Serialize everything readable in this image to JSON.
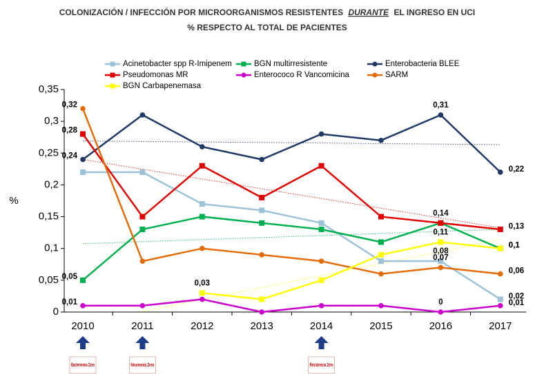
{
  "chart_data": {
    "type": "line",
    "title": [
      "COLONIZACIÓN / INFECCIÓN POR MICROORGANISMOS RESISTENTES",
      "DURANTE",
      "EL INGRESO EN UCI"
    ],
    "subtitle": "% RESPECTO AL TOTAL DE  PACIENTES",
    "y_label": "%",
    "categories": [
      "2010",
      "2011",
      "2012",
      "2013",
      "2014",
      "2015",
      "2016",
      "2017"
    ],
    "ylim": [
      0,
      0.35
    ],
    "yticks": [
      0,
      {
        "value": 0.05,
        "label": "0,05"
      },
      {
        "value": 0.1,
        "label": "0,1"
      },
      {
        "value": 0.15,
        "label": "0,15"
      },
      {
        "value": 0.2,
        "label": "0,2"
      },
      {
        "value": 0.25,
        "label": "0,25"
      },
      {
        "value": 0.3,
        "label": "0,3"
      },
      {
        "value": 0.35,
        "label": "0,35"
      }
    ],
    "grid": false,
    "series": [
      {
        "name": "Acinetobacter spp R-Imipenem",
        "color": "#9dc3d8",
        "marker": "square",
        "trendline": false,
        "values": [
          0.22,
          0.22,
          0.17,
          0.16,
          0.14,
          0.08,
          0.08,
          0.02
        ],
        "value_labels": [
          null,
          null,
          null,
          null,
          null,
          null,
          "0,08",
          "0,02"
        ]
      },
      {
        "name": "BGN multirresistente",
        "color": "#00b050",
        "marker": "square",
        "trendline": true,
        "values": [
          0.05,
          0.13,
          0.15,
          0.14,
          0.13,
          0.11,
          0.14,
          0.1
        ],
        "value_labels": [
          "0,05",
          null,
          null,
          null,
          null,
          null,
          null,
          "0,1"
        ]
      },
      {
        "name": "Enterobacteria BLEE",
        "color": "#1f3864",
        "marker": "circle",
        "trendline": true,
        "values": [
          0.24,
          0.31,
          0.26,
          0.24,
          0.28,
          0.27,
          0.31,
          0.22
        ],
        "value_labels": [
          "0,24",
          null,
          null,
          null,
          null,
          null,
          "0,31",
          "0,22"
        ]
      },
      {
        "name": "Pseudomonas MR",
        "color": "#e00000",
        "marker": "square",
        "trendline": true,
        "values": [
          0.28,
          0.15,
          0.23,
          0.18,
          0.23,
          0.15,
          0.14,
          0.13
        ],
        "value_labels": [
          "0,28",
          null,
          null,
          null,
          null,
          null,
          "0,14",
          "0,13"
        ]
      },
      {
        "name": "Enterococo R Vancomicina",
        "color": "#cc00cc",
        "marker": "circle",
        "trendline": false,
        "values": [
          0.01,
          0.01,
          0.02,
          0,
          0.01,
          0.01,
          0,
          0.01
        ],
        "value_labels": [
          "0,01",
          null,
          null,
          null,
          null,
          null,
          "0",
          "0,01"
        ]
      },
      {
        "name": "SARM",
        "color": "#e36c09",
        "marker": "circle",
        "trendline": false,
        "values": [
          0.32,
          0.08,
          0.1,
          0.09,
          0.08,
          0.06,
          0.07,
          0.06
        ],
        "value_labels": [
          "0,32",
          null,
          null,
          null,
          null,
          null,
          "0,07",
          "0,06"
        ]
      },
      {
        "name": "BGN Carbapenemasa",
        "color": "#ffff00",
        "marker": "square",
        "trendline": true,
        "values": [
          null,
          null,
          0.03,
          0.02,
          0.05,
          0.09,
          0.11,
          0.1
        ],
        "value_labels": [
          null,
          null,
          "0,03",
          null,
          null,
          null,
          "0,11",
          "0,1"
        ]
      }
    ],
    "annotations": [
      {
        "category": "2010",
        "text": "Bacteriemia Zero"
      },
      {
        "category": "2011",
        "text": "Neumonia Zero"
      },
      {
        "category": "2014",
        "text": "Resistencia Zero"
      }
    ]
  }
}
